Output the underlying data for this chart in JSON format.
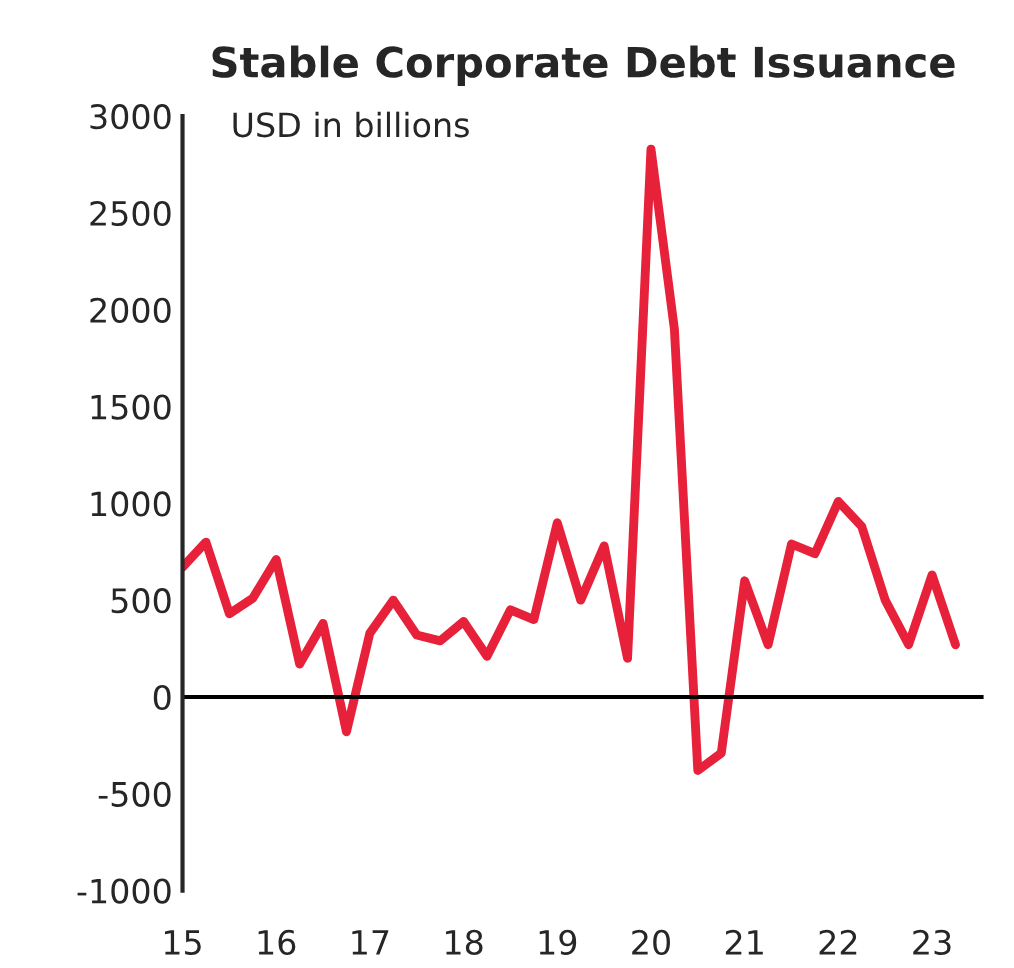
{
  "chart_data": {
    "type": "line",
    "title": "Stable Corporate Debt Issuance",
    "annotations": [
      "USD in billions"
    ],
    "x": [
      15,
      15.25,
      15.5,
      15.75,
      16,
      16.25,
      16.5,
      16.75,
      17,
      17.25,
      17.5,
      17.75,
      18,
      18.25,
      18.5,
      18.75,
      19,
      19.25,
      19.5,
      19.75,
      20,
      20.25,
      20.5,
      20.75,
      21,
      21.25,
      21.5,
      21.75,
      22,
      22.25,
      22.5,
      22.75,
      23,
      23.25
    ],
    "series": [
      {
        "color": "#e8213a",
        "values": [
          670,
          800,
          430,
          510,
          710,
          170,
          380,
          -180,
          330,
          500,
          320,
          290,
          390,
          210,
          450,
          400,
          900,
          500,
          780,
          200,
          2830,
          1900,
          -380,
          -290,
          600,
          270,
          790,
          740,
          1010,
          880,
          500,
          270,
          630,
          270
        ]
      }
    ],
    "xlim": [
      15,
      23.55
    ],
    "xticks": [
      15,
      16,
      17,
      18,
      19,
      20,
      21,
      22,
      23
    ],
    "ylim": [
      -1000,
      3000
    ],
    "yticks": [
      {
        "value": -1000,
        "label": "-1000"
      },
      {
        "value": -500,
        "label": "-500"
      },
      0,
      500,
      1000,
      1500,
      2000,
      2500,
      3000
    ],
    "ref_lines": [
      {
        "axis": "y",
        "value": 0,
        "color": "#000000"
      }
    ],
    "grid": false,
    "legend": false,
    "marker": "none",
    "line_style": "solid"
  }
}
